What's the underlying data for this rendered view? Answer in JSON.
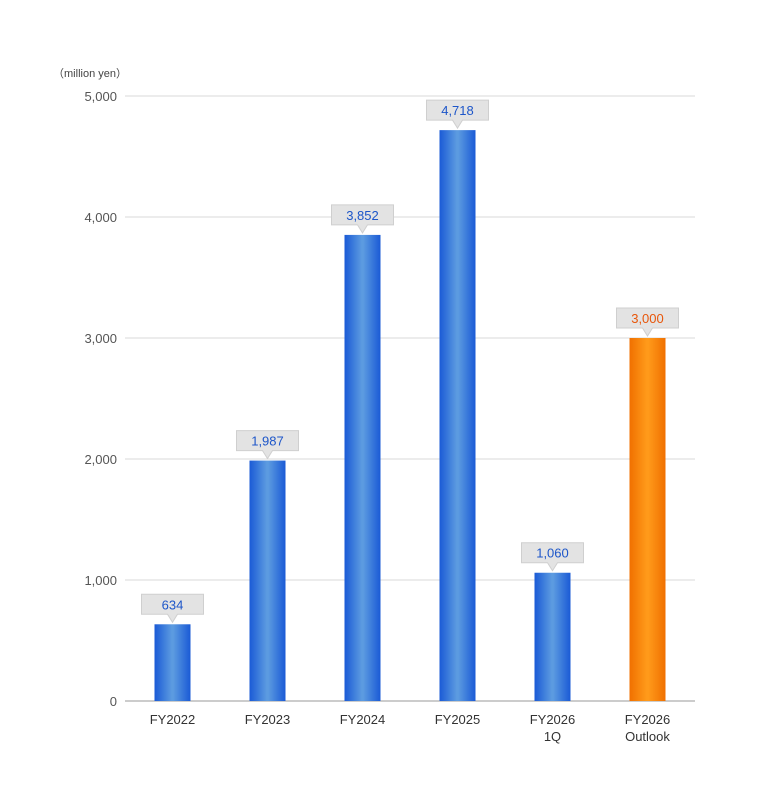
{
  "chart_data": {
    "type": "bar",
    "unit_label": "（million yen）",
    "categories": [
      [
        "FY2022"
      ],
      [
        "FY2023"
      ],
      [
        "FY2024"
      ],
      [
        "FY2025"
      ],
      [
        "FY2026",
        "1Q"
      ],
      [
        "FY2026",
        "Outlook"
      ]
    ],
    "values": [
      634,
      1987,
      3852,
      4718,
      1060,
      3000
    ],
    "value_labels": [
      "634",
      "1,987",
      "3,852",
      "4,718",
      "1,060",
      "3,000"
    ],
    "ylim": [
      0,
      5000
    ],
    "yticks": [
      0,
      1000,
      2000,
      3000,
      4000,
      5000
    ],
    "ytick_labels": [
      "0",
      "1,000",
      "2,000",
      "3,000",
      "4,000",
      "5,000"
    ],
    "grid": true,
    "bar_styles": [
      "actual",
      "actual",
      "actual",
      "actual",
      "actual",
      "outlook"
    ],
    "colors": {
      "actual": "#1a5ad6",
      "actual_light": "#5c9be0",
      "actual_label": "#1d56c9",
      "outlook": "#f07000",
      "outlook_light": "#ff9a1a",
      "outlook_label": "#e8560a",
      "grid": "#d9d9d9",
      "axis": "#999999",
      "label_box": "#e3e3e3"
    }
  }
}
